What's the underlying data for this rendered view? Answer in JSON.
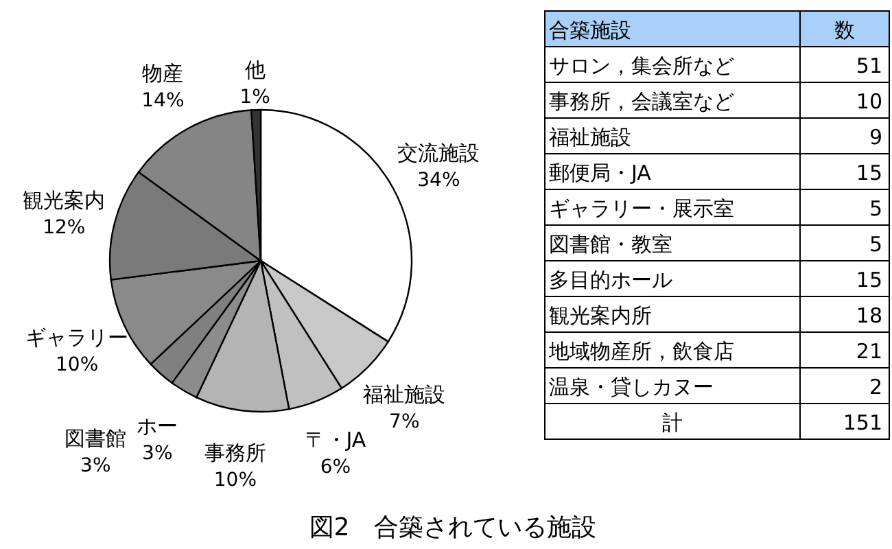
{
  "chart_data": [
    {
      "type": "pie",
      "title": "図2　合築されている施設",
      "categories": [
        "交流施設",
        "福祉施設",
        "〒・JA",
        "事務所",
        "ホー",
        "図書館",
        "ギャラリー",
        "観光案内",
        "物産",
        "他"
      ],
      "values": [
        34,
        7,
        6,
        10,
        3,
        3,
        10,
        12,
        14,
        1
      ],
      "colors": [
        "#ffffff",
        "#c8c8c8",
        "#c0c0c0",
        "#b4b4b4",
        "#8c8c8c",
        "#808080",
        "#8a8a8a",
        "#7a7a7a",
        "#858585",
        "#333333"
      ],
      "value_labels": [
        "34%",
        "7%",
        "6%",
        "10%",
        "3%",
        "3%",
        "10%",
        "12%",
        "14%",
        "1%"
      ]
    },
    {
      "type": "other",
      "xlabel": "合築施設",
      "ylabel": "数",
      "categories": [
        "サロン，集会所など",
        "事務所，会議室など",
        "福祉施設",
        "郵便局・JA",
        "ギャラリー・展示室",
        "図書館・教室",
        "多目的ホール",
        "観光案内所",
        "地域物産所，飲食店",
        "温泉・貸しカヌー",
        "計"
      ],
      "values": [
        51,
        10,
        9,
        15,
        5,
        5,
        15,
        18,
        21,
        2,
        151
      ],
      "data_labels": true
    }
  ]
}
